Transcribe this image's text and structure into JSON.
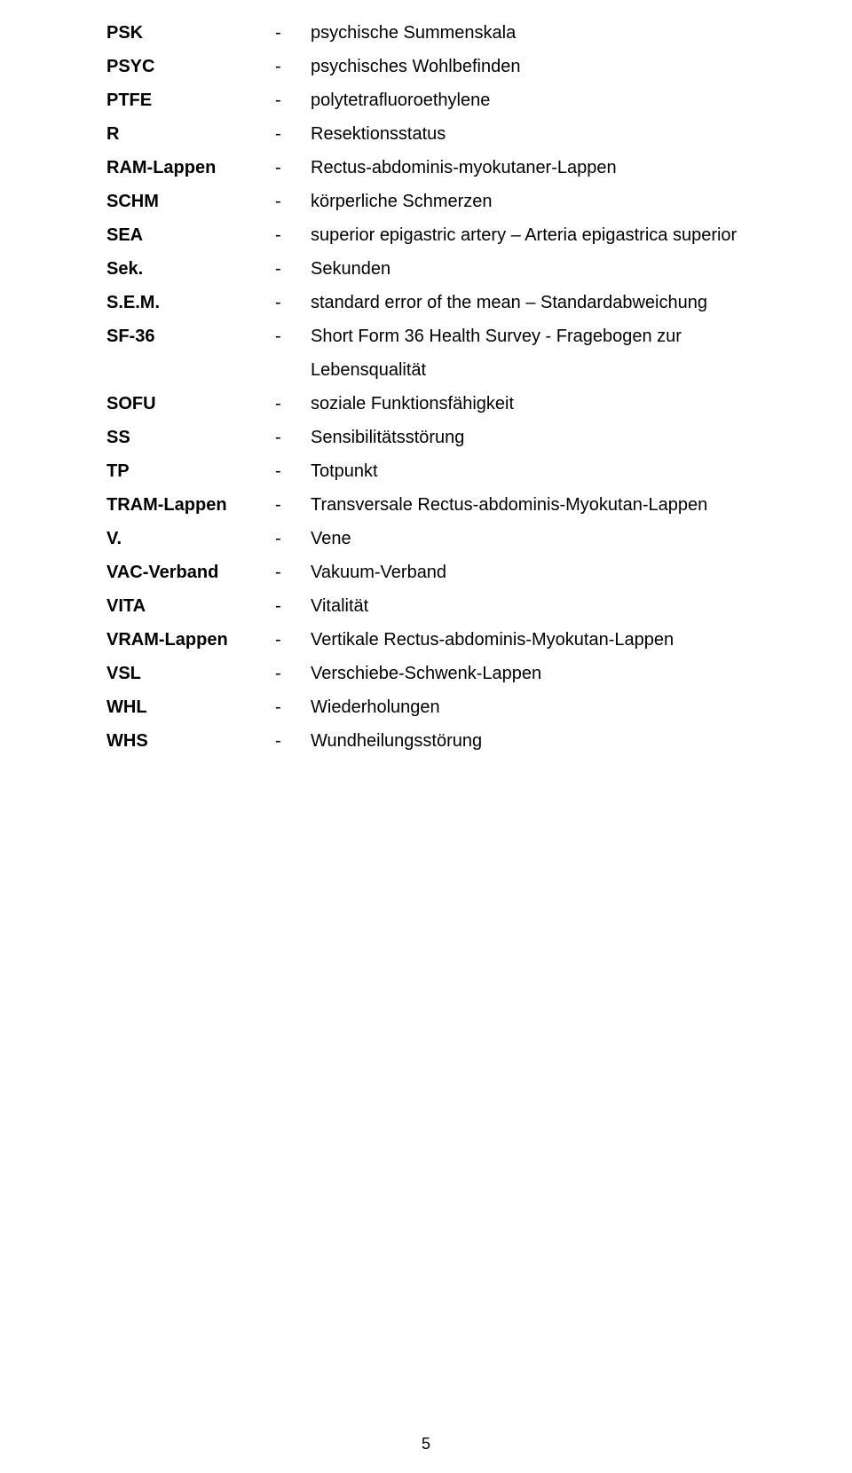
{
  "entries": [
    {
      "abbr": "PSK",
      "def": "psychische Summenskala"
    },
    {
      "abbr": "PSYC",
      "def": "psychisches Wohlbefinden"
    },
    {
      "abbr": "PTFE",
      "def": "polytetrafluoroethylene"
    },
    {
      "abbr": "R",
      "def": "Resektionsstatus"
    },
    {
      "abbr": "RAM-Lappen",
      "def": "Rectus-abdominis-myokutaner-Lappen"
    },
    {
      "abbr": "SCHM",
      "def": "körperliche Schmerzen"
    },
    {
      "abbr": "SEA",
      "def": "superior epigastric artery – Arteria epigastrica superior"
    },
    {
      "abbr": "Sek.",
      "def": "Sekunden"
    },
    {
      "abbr": "S.E.M.",
      "def": "standard error of the mean – Standardabweichung"
    },
    {
      "abbr": "SF-36",
      "def": "Short Form 36 Health Survey - Fragebogen zur",
      "cont": "Lebensqualität"
    },
    {
      "abbr": "SOFU",
      "def": "soziale Funktionsfähigkeit"
    },
    {
      "abbr": "SS",
      "def": "Sensibilitätsstörung"
    },
    {
      "abbr": "TP",
      "def": "Totpunkt"
    },
    {
      "abbr": "TRAM-Lappen",
      "def": "Transversale Rectus-abdominis-Myokutan-Lappen"
    },
    {
      "abbr": "V.",
      "def": "Vene"
    },
    {
      "abbr": "VAC-Verband",
      "def": "Vakuum-Verband"
    },
    {
      "abbr": "VITA",
      "def": "Vitalität"
    },
    {
      "abbr": "VRAM-Lappen",
      "def": "Vertikale Rectus-abdominis-Myokutan-Lappen"
    },
    {
      "abbr": "VSL",
      "def": "Verschiebe-Schwenk-Lappen"
    },
    {
      "abbr": "WHL",
      "def": "Wiederholungen"
    },
    {
      "abbr": "WHS",
      "def": "Wundheilungsstörung"
    }
  ],
  "dash": "-",
  "page_number": "5"
}
